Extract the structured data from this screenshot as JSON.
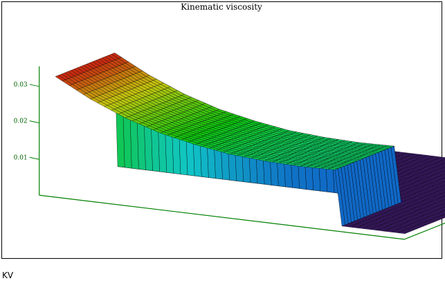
{
  "caption": "KV",
  "chart_data": {
    "type": "surface3d",
    "title": "Kinematic viscosity",
    "xlabel": "",
    "ylabel": "",
    "zlabel": "",
    "z_ticks": [
      0.01,
      0.02,
      0.03
    ],
    "z_tick_labels": [
      "0.01",
      "0.02",
      "0.03"
    ],
    "zlim": [
      0,
      0.033
    ],
    "x_range": [
      0,
      1
    ],
    "y_range": [
      0,
      1
    ],
    "profile_along_x": {
      "x": [
        0,
        0.1,
        0.2,
        0.3,
        0.4,
        0.5,
        0.6,
        0.7,
        0.8
      ],
      "z": [
        0.0325,
        0.0275,
        0.0235,
        0.0205,
        0.0185,
        0.017,
        0.0163,
        0.016,
        0.0162
      ]
    },
    "profile_extent_y": 0.4,
    "baseline_z": 0.001,
    "grid": false,
    "colormap": "rainbow",
    "surface_floor_color": "#3b1a66",
    "axis_color": "#008000",
    "tick_label_color": "#006400"
  }
}
